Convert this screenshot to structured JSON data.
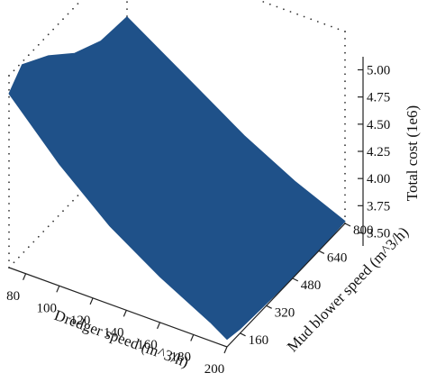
{
  "chart_data": {
    "type": "surface3d",
    "title": "",
    "xlabel": "Dredger speed (m^3/h)",
    "ylabel": "Mud blower speed (m^3/h)",
    "zlabel": "Total cost (1e6)",
    "x_ticks": [
      "80",
      "100",
      "120",
      "140",
      "160",
      "180",
      "200"
    ],
    "y_ticks": [
      "160",
      "320",
      "480",
      "640",
      "800"
    ],
    "z_ticks": [
      "3.50",
      "3.75",
      "4.00",
      "4.25",
      "4.50",
      "4.75",
      "5.00"
    ],
    "x": [
      70,
      200
    ],
    "y": [
      80,
      800
    ],
    "z": [
      3.38,
      5.12
    ],
    "surface_color": "#1f5189",
    "grid": "dotted",
    "surface_outline": [
      {
        "x": 70,
        "y": 800,
        "z": 4.55
      },
      {
        "x": 70,
        "y": 640,
        "z": 4.58
      },
      {
        "x": 70,
        "y": 480,
        "z": 4.72
      },
      {
        "x": 70,
        "y": 320,
        "z": 4.95
      },
      {
        "x": 70,
        "y": 160,
        "z": 5.12
      },
      {
        "x": 70,
        "y": 80,
        "z": 4.98
      },
      {
        "x": 100,
        "y": 80,
        "z": 4.5
      },
      {
        "x": 130,
        "y": 80,
        "z": 4.1
      },
      {
        "x": 160,
        "y": 80,
        "z": 3.8
      },
      {
        "x": 190,
        "y": 80,
        "z": 3.55
      },
      {
        "x": 200,
        "y": 80,
        "z": 3.45
      },
      {
        "x": 200,
        "y": 160,
        "z": 3.42
      },
      {
        "x": 200,
        "y": 320,
        "z": 3.4
      },
      {
        "x": 200,
        "y": 480,
        "z": 3.38
      },
      {
        "x": 200,
        "y": 640,
        "z": 3.38
      },
      {
        "x": 200,
        "y": 800,
        "z": 3.4
      },
      {
        "x": 170,
        "y": 800,
        "z": 3.6
      },
      {
        "x": 140,
        "y": 800,
        "z": 3.85
      },
      {
        "x": 110,
        "y": 800,
        "z": 4.15
      }
    ]
  }
}
